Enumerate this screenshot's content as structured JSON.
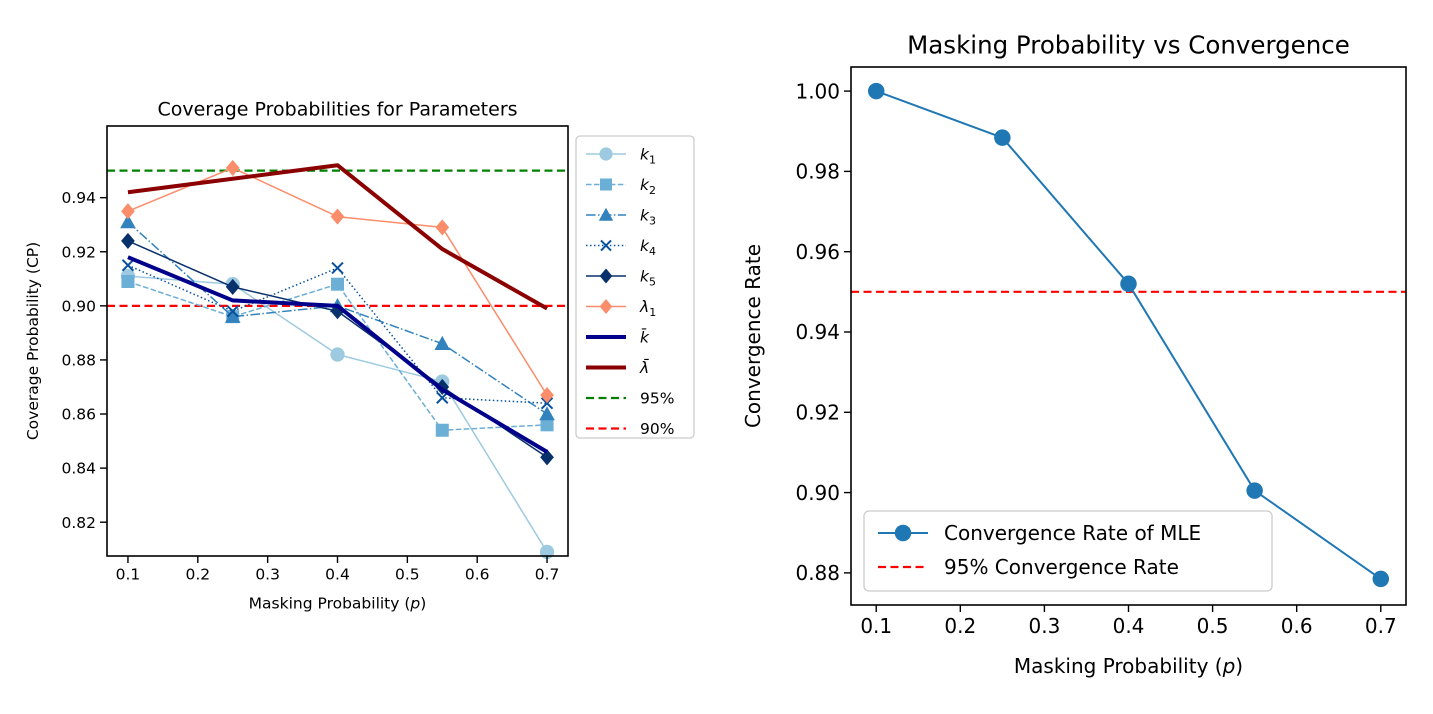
{
  "chart_data": [
    {
      "type": "line",
      "title": "Coverage Probabilities for Parameters",
      "xlabel_prefix": "Masking Probability (",
      "xlabel_var": "p",
      "xlabel_suffix": ")",
      "ylabel": "Coverage Probability (CP)",
      "x": [
        0.1,
        0.25,
        0.4,
        0.55,
        0.7
      ],
      "xlim": [
        0.07,
        0.73
      ],
      "ylim": [
        0.8075,
        0.9665
      ],
      "xticks": [
        0.1,
        0.2,
        0.3,
        0.4,
        0.5,
        0.6,
        0.7
      ],
      "xtick_labels": [
        "0.1",
        "0.2",
        "0.3",
        "0.4",
        "0.5",
        "0.6",
        "0.7"
      ],
      "yticks": [
        0.82,
        0.84,
        0.86,
        0.88,
        0.9,
        0.92,
        0.94
      ],
      "ytick_labels": [
        "0.82",
        "0.84",
        "0.86",
        "0.88",
        "0.90",
        "0.92",
        "0.94"
      ],
      "grid": false,
      "legend_position": "outside right",
      "series": [
        {
          "name": "k",
          "sub": "1",
          "values": [
            0.911,
            0.908,
            0.882,
            0.872,
            0.809
          ],
          "color": "#9ecae1",
          "marker": "circle",
          "dash": "solid",
          "width": 1.5
        },
        {
          "name": "k",
          "sub": "2",
          "values": [
            0.909,
            0.896,
            0.908,
            0.854,
            0.856
          ],
          "color": "#6baed6",
          "marker": "square",
          "dash": "dashed",
          "width": 1.5
        },
        {
          "name": "k",
          "sub": "3",
          "values": [
            0.931,
            0.896,
            0.9,
            0.886,
            0.86
          ],
          "color": "#3182bd",
          "marker": "triangle",
          "dash": "dashdot",
          "width": 1.5
        },
        {
          "name": "k",
          "sub": "4",
          "values": [
            0.915,
            0.898,
            0.914,
            0.866,
            0.864
          ],
          "color": "#08519c",
          "marker": "x",
          "dash": "dotted",
          "width": 1.5
        },
        {
          "name": "k",
          "sub": "5",
          "values": [
            0.924,
            0.907,
            0.898,
            0.87,
            0.844
          ],
          "color": "#08306b",
          "marker": "diamond",
          "dash": "solid",
          "width": 1.5
        },
        {
          "name": "λ",
          "sub": "1",
          "values": [
            0.935,
            0.951,
            0.933,
            0.929,
            0.867
          ],
          "color": "#fc8d6b",
          "marker": "diamond",
          "dash": "solid",
          "width": 1.5
        },
        {
          "name": "k̄",
          "sub": "",
          "values": [
            0.918,
            0.902,
            0.9,
            0.869,
            0.846
          ],
          "color": "#00008b",
          "marker": "none",
          "dash": "solid",
          "width": 4
        },
        {
          "name": "λ̄",
          "sub": "",
          "values": [
            0.942,
            0.947,
            0.952,
            0.921,
            0.899
          ],
          "color": "#8b0000",
          "marker": "none",
          "dash": "solid",
          "width": 4
        }
      ],
      "hlines": [
        {
          "name": "95%",
          "y": 0.95,
          "color": "#008000"
        },
        {
          "name": "90%",
          "y": 0.9,
          "color": "#ff0000"
        }
      ]
    },
    {
      "type": "line",
      "title": "Masking Probability vs Convergence",
      "xlabel_prefix": "Masking Probability (",
      "xlabel_var": "p",
      "xlabel_suffix": ")",
      "ylabel": "Convergence Rate",
      "x": [
        0.1,
        0.25,
        0.4,
        0.55,
        0.7
      ],
      "xlim": [
        0.07,
        0.73
      ],
      "ylim": [
        0.872,
        1.006
      ],
      "xticks": [
        0.1,
        0.2,
        0.3,
        0.4,
        0.5,
        0.6,
        0.7
      ],
      "xtick_labels": [
        "0.1",
        "0.2",
        "0.3",
        "0.4",
        "0.5",
        "0.6",
        "0.7"
      ],
      "yticks": [
        0.88,
        0.9,
        0.92,
        0.94,
        0.96,
        0.98,
        1.0
      ],
      "ytick_labels": [
        "0.88",
        "0.90",
        "0.92",
        "0.94",
        "0.96",
        "0.98",
        "1.00"
      ],
      "grid": false,
      "legend_position": "lower left",
      "series": [
        {
          "name": "Convergence Rate of MLE",
          "values": [
            1.0,
            0.9884,
            0.952,
            0.9005,
            0.8785
          ],
          "color": "#1f77b4",
          "marker": "circle",
          "dash": "solid",
          "width": 2
        }
      ],
      "hlines": [
        {
          "name": "95% Convergence Rate",
          "y": 0.95,
          "color": "#ff0000"
        }
      ]
    }
  ]
}
